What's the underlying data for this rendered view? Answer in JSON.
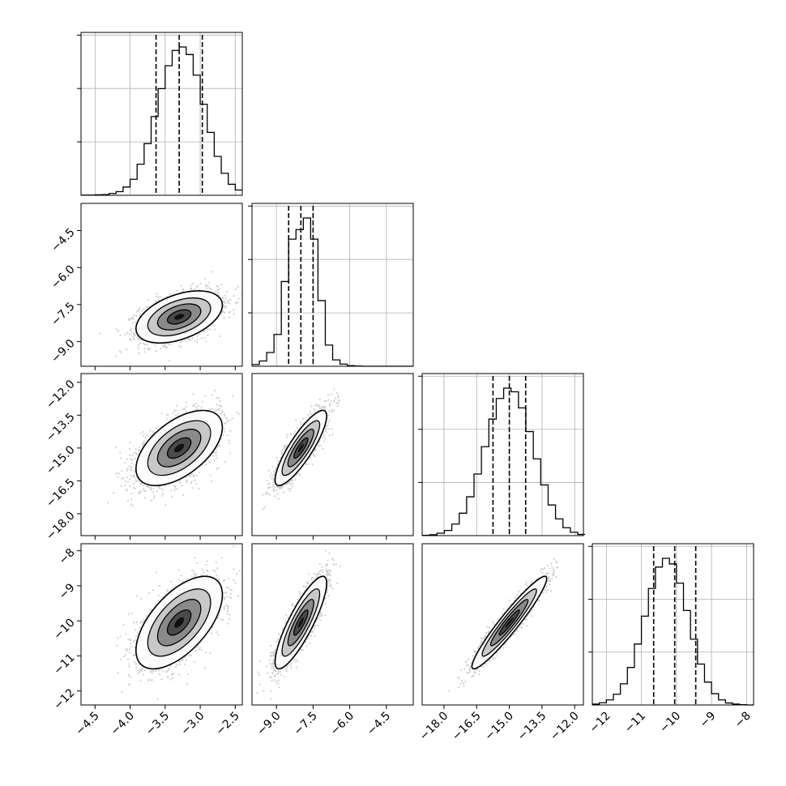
{
  "chart_data": {
    "type": "corner",
    "grid": true,
    "variables": [
      {
        "range": [
          -4.7,
          -2.4
        ],
        "ticks": [
          -4.5,
          -4.0,
          -3.5,
          -3.0,
          -2.5
        ],
        "tick_labels": [
          "−4.5",
          "−4.0",
          "−3.5",
          "−3.0",
          "−2.5"
        ],
        "mean": -3.3,
        "sd": 0.28,
        "quantiles": [
          -3.63,
          -3.3,
          -2.97
        ]
      },
      {
        "range": [
          -10.0,
          -3.4
        ],
        "ticks": [
          -9.0,
          -7.5,
          -6.0,
          -4.5
        ],
        "tick_labels": [
          "−9.0",
          "−7.5",
          "−6.0",
          "−4.5"
        ],
        "mean": -8.0,
        "sd": 0.48,
        "quantiles": [
          -8.5,
          -8.0,
          -7.5
        ]
      },
      {
        "range": [
          -19.0,
          -11.6
        ],
        "ticks": [
          -18.0,
          -16.5,
          -15.0,
          -13.5,
          -12.0
        ],
        "tick_labels": [
          "−18.0",
          "−16.5",
          "−15.0",
          "−13.5",
          "−12.0"
        ],
        "mean": -15.0,
        "sd": 0.78,
        "quantiles": [
          -15.75,
          -15.0,
          -14.25
        ]
      },
      {
        "range": [
          -12.4,
          -7.8
        ],
        "ticks": [
          -12,
          -11,
          -10,
          -9,
          -8
        ],
        "tick_labels": [
          "−12",
          "−11",
          "−10",
          "−9",
          "−8"
        ],
        "mean": -10.05,
        "sd": 0.6,
        "quantiles": [
          -10.65,
          -10.05,
          -9.45
        ]
      }
    ],
    "histograms": [
      {
        "variable": 0,
        "bin_edges": [
          -4.7,
          -4.6,
          -4.5,
          -4.4,
          -4.3,
          -4.2,
          -4.1,
          -4.0,
          -3.9,
          -3.8,
          -3.7,
          -3.6,
          -3.5,
          -3.4,
          -3.3,
          -3.2,
          -3.1,
          -3.0,
          -2.9,
          -2.8,
          -2.7,
          -2.6,
          -2.5,
          -2.4
        ],
        "counts": [
          1,
          1,
          2,
          3,
          8,
          16,
          36,
          70,
          136,
          226,
          344,
          466,
          566,
          633,
          648,
          615,
          525,
          398,
          275,
          170,
          96,
          48,
          23
        ]
      },
      {
        "variable": 1,
        "bin_edges": [
          -10.0,
          -9.7,
          -9.4,
          -9.1,
          -8.8,
          -8.5,
          -8.2,
          -7.9,
          -7.6,
          -7.3,
          -7.0,
          -6.7,
          -6.4,
          -6.1,
          -5.8,
          -5.5,
          -5.2,
          -4.9,
          -4.6,
          -4.3,
          -4.0,
          -3.7,
          -3.4
        ],
        "counts": [
          8,
          25,
          65,
          150,
          400,
          600,
          645,
          700,
          600,
          310,
          100,
          30,
          10,
          3,
          1,
          0,
          0,
          0,
          0,
          0,
          0,
          0
        ]
      },
      {
        "variable": 2,
        "bin_edges": [
          -19.0,
          -18.66,
          -18.32,
          -17.98,
          -17.64,
          -17.3,
          -16.96,
          -16.62,
          -16.28,
          -15.94,
          -15.6,
          -15.26,
          -14.92,
          -14.58,
          -14.24,
          -13.9,
          -13.56,
          -13.22,
          -12.88,
          -12.54,
          -12.2,
          -11.86,
          -11.52
        ],
        "counts": [
          1,
          3,
          8,
          17,
          38,
          74,
          128,
          203,
          293,
          384,
          452,
          486,
          474,
          421,
          343,
          253,
          167,
          101,
          55,
          26,
          11,
          4
        ]
      },
      {
        "variable": 3,
        "bin_edges": [
          -12.4,
          -12.2,
          -12.0,
          -11.8,
          -11.6,
          -11.4,
          -11.2,
          -11.0,
          -10.8,
          -10.6,
          -10.4,
          -10.2,
          -10.0,
          -9.8,
          -9.6,
          -9.4,
          -9.2,
          -9.0,
          -8.8,
          -8.6,
          -8.4,
          -8.2,
          -8.0,
          -7.8
        ],
        "counts": [
          3,
          8,
          18,
          38,
          75,
          133,
          216,
          315,
          413,
          489,
          520,
          500,
          432,
          335,
          233,
          145,
          81,
          40,
          18,
          7,
          3,
          1,
          0
        ]
      }
    ],
    "joint_panels": [
      {
        "x_variable": 0,
        "y_variable": 1,
        "correlation": 0.45
      },
      {
        "x_variable": 0,
        "y_variable": 2,
        "correlation": 0.55
      },
      {
        "x_variable": 1,
        "y_variable": 2,
        "correlation": 0.85
      },
      {
        "x_variable": 0,
        "y_variable": 3,
        "correlation": 0.6
      },
      {
        "x_variable": 1,
        "y_variable": 3,
        "correlation": 0.85
      },
      {
        "x_variable": 2,
        "y_variable": 3,
        "correlation": 0.95
      }
    ],
    "title": "",
    "xlabel": "",
    "ylabel": ""
  }
}
